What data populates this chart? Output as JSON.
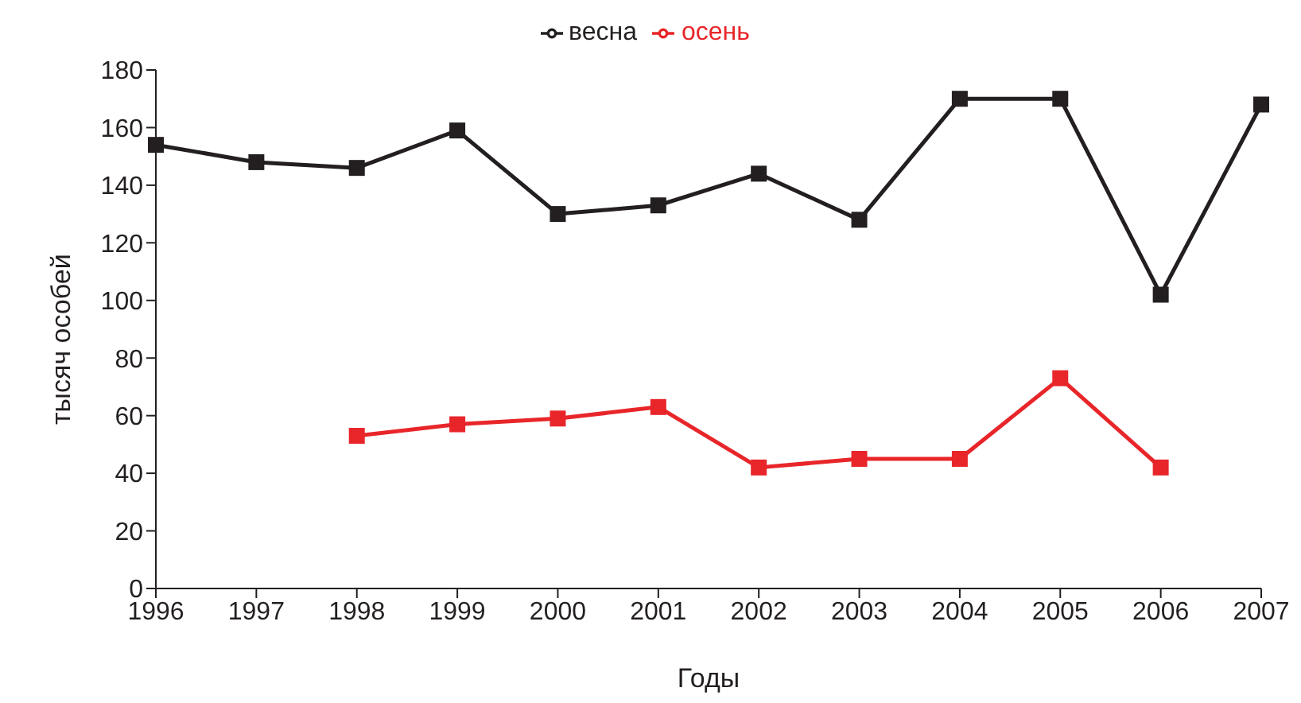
{
  "chart_data": {
    "type": "line",
    "xlabel": "Годы",
    "ylabel": "тысяч особей",
    "categories": [
      "1996",
      "1997",
      "1998",
      "1999",
      "2000",
      "2001",
      "2002",
      "2003",
      "2004",
      "2005",
      "2006",
      "2007"
    ],
    "series": [
      {
        "name": "весна",
        "color": "#231f20",
        "values": [
          154,
          148,
          146,
          159,
          130,
          133,
          144,
          128,
          170,
          170,
          102,
          168
        ]
      },
      {
        "name": "осень",
        "color": "#e8262a",
        "values": [
          null,
          null,
          53,
          57,
          59,
          63,
          42,
          45,
          45,
          73,
          42,
          null
        ]
      }
    ],
    "ylim": [
      0,
      180
    ],
    "yticks": [
      0,
      20,
      40,
      60,
      80,
      100,
      120,
      140,
      160,
      180
    ],
    "grid": false,
    "legend": "top",
    "marker": "square",
    "line_style": "solid"
  }
}
